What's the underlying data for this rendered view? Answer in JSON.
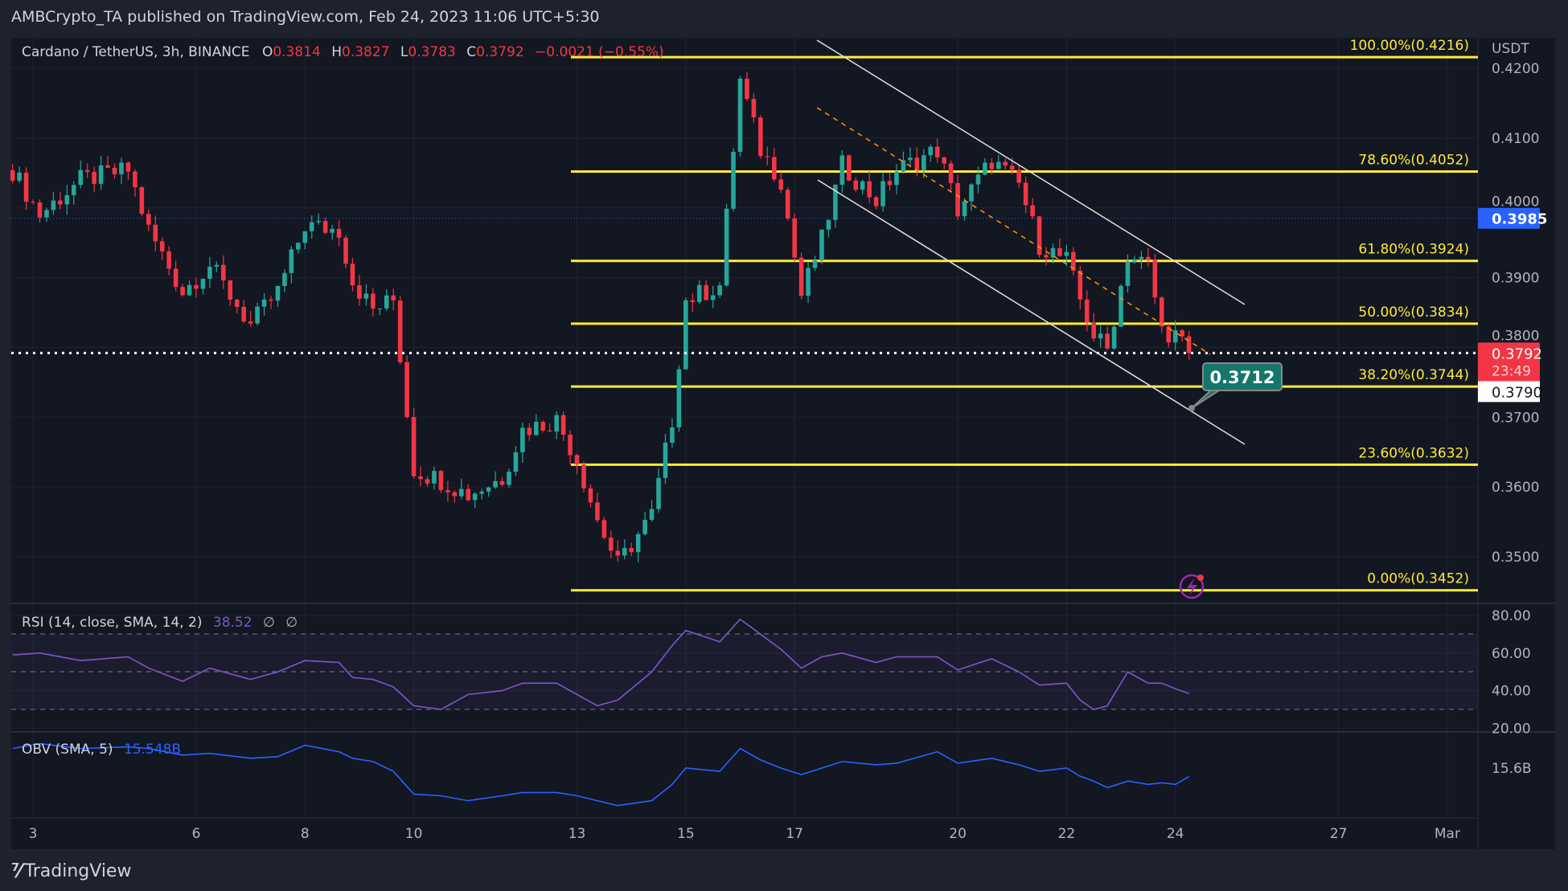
{
  "header": {
    "published": "AMBCrypto_TA published on TradingView.com, Feb 24, 2023 11:06 UTC+5:30"
  },
  "legend": {
    "symbol": "Cardano / TetherUS, 3h, BINANCE",
    "o_label": "O",
    "o": "0.3814",
    "h_label": "H",
    "h": "0.3827",
    "l_label": "L",
    "l": "0.3783",
    "c_label": "C",
    "c": "0.3792",
    "change": "−0.0021 (−0.55%)"
  },
  "colors": {
    "up": "#26a69a",
    "down": "#f23645",
    "fib": "#ffeb3b",
    "rsi": "#7e57c2",
    "obv": "#2962ff",
    "background": "#131722"
  },
  "price_axis": {
    "currency": "USDT",
    "ticks": [
      "0.4200",
      "0.4100",
      "0.4000",
      "0.3900",
      "0.3800",
      "0.3700",
      "0.3600",
      "0.3500"
    ],
    "tick_values": [
      0.42,
      0.41,
      0.4,
      0.39,
      0.38,
      0.37,
      0.36,
      0.35
    ],
    "blue_badge": "0.3985",
    "last_price_badge": "0.3792",
    "countdown": "23:49",
    "white_badge": "0.3790"
  },
  "callout": {
    "label": "0.3712"
  },
  "rsi": {
    "label": "RSI (14, close, SMA, 14, 2)",
    "value": "38.52",
    "extra1": "∅",
    "extra2": "∅",
    "ticks": [
      "80.00",
      "60.00",
      "40.00",
      "20.00"
    ],
    "tick_values": [
      80,
      60,
      40,
      20
    ]
  },
  "obv": {
    "label": "OBV (SMA, 5)",
    "value": "15.548B",
    "tick": "15.6B"
  },
  "time_axis": {
    "ticks": [
      "3",
      "6",
      "8",
      "10",
      "13",
      "15",
      "17",
      "20",
      "22",
      "24",
      "27",
      "Mar"
    ]
  },
  "footer": {
    "brand": "TradingView",
    "logo_text": "17"
  },
  "chart_data": {
    "type": "candlestick",
    "symbol": "ADA/USDT",
    "interval": "3h",
    "ylim": [
      0.344,
      0.4245
    ],
    "fib_levels": [
      {
        "label": "100.00%(0.4216)",
        "value": 0.4216
      },
      {
        "label": "78.60%(0.4052)",
        "value": 0.4052
      },
      {
        "label": "61.80%(0.3924)",
        "value": 0.3924
      },
      {
        "label": "50.00%(0.3834)",
        "value": 0.3834
      },
      {
        "label": "38.20%(0.3744)",
        "value": 0.3744
      },
      {
        "label": "23.60%(0.3632)",
        "value": 0.3632
      },
      {
        "label": "0.00%(0.3452)",
        "value": 0.3452
      }
    ],
    "price_path": {
      "t": [
        "2023-02-02 15:00",
        "2023-02-03 03:00",
        "2023-02-03 21:00",
        "2023-02-04 18:00",
        "2023-02-05 03:00",
        "2023-02-05 18:00",
        "2023-02-06 06:00",
        "2023-02-07 00:00",
        "2023-02-07 12:00",
        "2023-02-08 00:00",
        "2023-02-08 15:00",
        "2023-02-08 21:00",
        "2023-02-09 06:00",
        "2023-02-09 15:00",
        "2023-02-10 00:00",
        "2023-02-10 12:00",
        "2023-02-11 00:00",
        "2023-02-11 15:00",
        "2023-02-12 00:00",
        "2023-02-12 15:00",
        "2023-02-13 00:00",
        "2023-02-13 09:00",
        "2023-02-13 18:00",
        "2023-02-14 09:00",
        "2023-02-14 18:00",
        "2023-02-15 00:00",
        "2023-02-15 15:00",
        "2023-02-16 00:00",
        "2023-02-16 09:00",
        "2023-02-16 18:00",
        "2023-02-17 03:00",
        "2023-02-17 12:00",
        "2023-02-17 21:00",
        "2023-02-18 12:00",
        "2023-02-18 21:00",
        "2023-02-19 15:00",
        "2023-02-20 00:00",
        "2023-02-20 15:00",
        "2023-02-21 03:00",
        "2023-02-21 12:00",
        "2023-02-22 00:00",
        "2023-02-22 06:00",
        "2023-02-22 12:00",
        "2023-02-22 18:00",
        "2023-02-23 03:00",
        "2023-02-23 12:00",
        "2023-02-23 18:00",
        "2023-02-24 00:00",
        "2023-02-24 06:00"
      ],
      "close": [
        0.4054,
        0.399,
        0.404,
        0.4054,
        0.3968,
        0.388,
        0.3918,
        0.3832,
        0.388,
        0.3975,
        0.3968,
        0.3895,
        0.3854,
        0.3868,
        0.3625,
        0.361,
        0.3589,
        0.3613,
        0.3682,
        0.3696,
        0.3639,
        0.3553,
        0.3489,
        0.356,
        0.3696,
        0.3868,
        0.3889,
        0.4183,
        0.4083,
        0.404,
        0.3875,
        0.3954,
        0.4061,
        0.4011,
        0.4054,
        0.4083,
        0.3997,
        0.4068,
        0.4033,
        0.3947,
        0.3925,
        0.3868,
        0.3818,
        0.3797,
        0.3933,
        0.3918,
        0.3825,
        0.3818,
        0.3792
      ],
      "rsi": [
        59,
        60,
        56,
        58,
        52,
        45,
        52,
        46,
        50,
        56,
        55,
        47,
        46,
        42,
        32,
        30,
        38,
        40,
        44,
        44,
        38,
        32,
        35,
        50,
        64,
        72,
        66,
        78,
        70,
        62,
        52,
        58,
        60,
        55,
        58,
        58,
        51,
        57,
        50,
        43,
        44,
        35,
        30,
        32,
        50,
        44,
        44,
        41,
        38.52
      ],
      "obv_billions": [
        15.72,
        15.75,
        15.72,
        15.73,
        15.72,
        15.68,
        15.69,
        15.66,
        15.67,
        15.74,
        15.7,
        15.66,
        15.64,
        15.58,
        15.44,
        15.43,
        15.4,
        15.43,
        15.45,
        15.45,
        15.43,
        15.4,
        15.37,
        15.4,
        15.5,
        15.6,
        15.58,
        15.72,
        15.65,
        15.6,
        15.56,
        15.6,
        15.64,
        15.62,
        15.63,
        15.7,
        15.63,
        15.66,
        15.62,
        15.58,
        15.6,
        15.55,
        15.52,
        15.48,
        15.52,
        15.5,
        15.51,
        15.5,
        15.548
      ]
    }
  }
}
